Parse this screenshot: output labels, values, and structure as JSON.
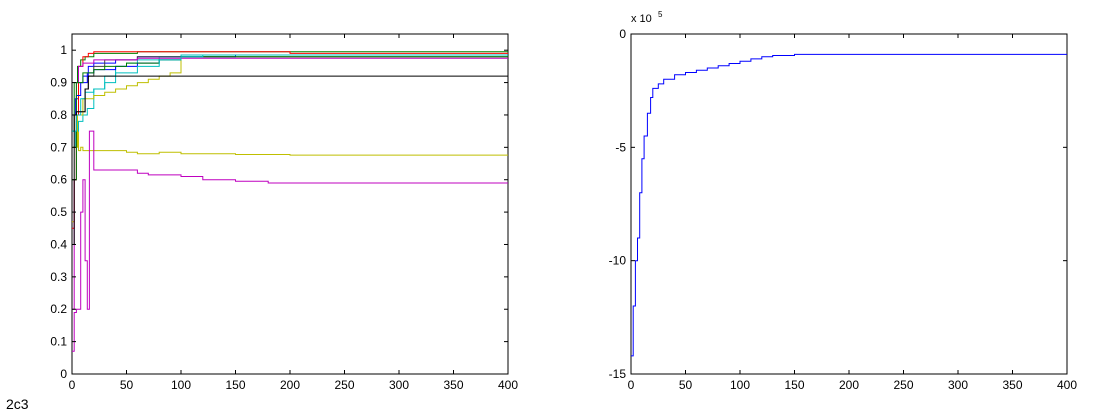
{
  "figure_label": "2c3",
  "chart_data": [
    {
      "type": "line",
      "title": "",
      "xlabel": "",
      "ylabel": "",
      "xlim": [
        0,
        400
      ],
      "ylim": [
        0,
        1.05
      ],
      "xticks": [
        0,
        50,
        100,
        150,
        200,
        250,
        300,
        350,
        400
      ],
      "yticks": [
        0,
        0.1,
        0.2,
        0.3,
        0.4,
        0.5,
        0.6,
        0.7,
        0.8,
        0.9,
        1
      ],
      "ytick_labels": [
        "0",
        "0.1",
        "0.2",
        "0.3",
        "0.4",
        "0.5",
        "0.6",
        "0.7",
        "0.8",
        "0.9",
        "1"
      ],
      "grid": false,
      "legend": "none",
      "series": [
        {
          "color": "#bfbf00",
          "x": [
            0,
            2,
            4,
            6,
            8,
            10,
            12,
            20,
            30,
            50,
            60,
            70,
            80,
            100,
            150,
            200,
            250,
            300,
            400
          ],
          "y": [
            0.47,
            0.6,
            0.78,
            0.69,
            0.7,
            0.69,
            0.69,
            0.69,
            0.69,
            0.685,
            0.68,
            0.68,
            0.685,
            0.68,
            0.678,
            0.676,
            0.676,
            0.676,
            0.676
          ]
        },
        {
          "color": "#bf00bf",
          "x": [
            0,
            2,
            4,
            6,
            8,
            10,
            12,
            14,
            16,
            20,
            25,
            40,
            60,
            70,
            100,
            120,
            130,
            150,
            180,
            200,
            300,
            400
          ],
          "y": [
            0.07,
            0.19,
            0.2,
            0.2,
            0.5,
            0.6,
            0.35,
            0.2,
            0.75,
            0.63,
            0.63,
            0.63,
            0.62,
            0.615,
            0.61,
            0.6,
            0.6,
            0.595,
            0.59,
            0.59,
            0.59,
            0.59
          ]
        },
        {
          "color": "#0000ff",
          "x": [
            0,
            3,
            6,
            10,
            15,
            20,
            40,
            60,
            80,
            100,
            150,
            200,
            400
          ],
          "y": [
            0.8,
            0.85,
            0.9,
            0.92,
            0.95,
            0.96,
            0.97,
            0.98,
            0.98,
            0.985,
            0.985,
            0.985,
            0.985
          ]
        },
        {
          "color": "#008000",
          "x": [
            0,
            2,
            5,
            8,
            12,
            20,
            40,
            60,
            80,
            100,
            200,
            400
          ],
          "y": [
            0.75,
            0.9,
            0.95,
            0.97,
            0.98,
            0.99,
            0.99,
            0.995,
            0.995,
            0.995,
            0.995,
            0.995
          ]
        },
        {
          "color": "#ff0000",
          "x": [
            0,
            2,
            4,
            6,
            10,
            15,
            20,
            40,
            60,
            100,
            200,
            400
          ],
          "y": [
            0.45,
            0.6,
            0.8,
            0.95,
            0.98,
            0.99,
            0.995,
            0.995,
            0.995,
            0.995,
            0.99,
            0.99
          ]
        },
        {
          "color": "#00bfbf",
          "x": [
            0,
            3,
            6,
            10,
            14,
            20,
            30,
            40,
            50,
            60,
            80,
            100,
            150,
            400
          ],
          "y": [
            0.7,
            0.75,
            0.78,
            0.8,
            0.82,
            0.88,
            0.92,
            0.95,
            0.96,
            0.97,
            0.98,
            0.985,
            0.985,
            0.985
          ]
        },
        {
          "color": "#404040",
          "x": [
            0,
            2,
            4,
            8,
            12,
            15,
            20,
            30,
            60,
            100,
            200,
            400
          ],
          "y": [
            0.75,
            0.8,
            0.81,
            0.81,
            0.88,
            0.92,
            0.95,
            0.97,
            0.98,
            0.98,
            0.98,
            0.98
          ]
        },
        {
          "color": "#bfbf00",
          "x": [
            0,
            5,
            10,
            20,
            30,
            40,
            50,
            60,
            70,
            80,
            90,
            100,
            150,
            400
          ],
          "y": [
            0.7,
            0.8,
            0.85,
            0.86,
            0.87,
            0.88,
            0.89,
            0.9,
            0.91,
            0.92,
            0.93,
            0.98,
            0.985,
            0.985
          ]
        },
        {
          "color": "#bf00bf",
          "x": [
            0,
            2,
            4,
            6,
            10,
            20,
            40,
            60,
            100,
            150,
            200,
            400
          ],
          "y": [
            0.2,
            0.6,
            0.9,
            0.95,
            0.96,
            0.97,
            0.97,
            0.975,
            0.975,
            0.975,
            0.975,
            0.975
          ]
        },
        {
          "color": "#0000ff",
          "x": [
            0,
            4,
            8,
            14,
            20,
            40,
            60,
            80,
            100,
            150,
            400
          ],
          "y": [
            0.8,
            0.86,
            0.9,
            0.93,
            0.94,
            0.95,
            0.96,
            0.97,
            0.98,
            0.985,
            0.985
          ]
        },
        {
          "color": "#008000",
          "x": [
            0,
            4,
            10,
            20,
            30,
            50,
            80,
            100,
            400
          ],
          "y": [
            0.6,
            0.9,
            0.93,
            0.94,
            0.95,
            0.96,
            0.97,
            0.98,
            0.98
          ]
        },
        {
          "color": "#00bfbf",
          "x": [
            0,
            4,
            8,
            12,
            20,
            30,
            40,
            60,
            80,
            100,
            120,
            400
          ],
          "y": [
            0.75,
            0.8,
            0.85,
            0.87,
            0.88,
            0.9,
            0.93,
            0.95,
            0.97,
            0.98,
            0.985,
            0.985
          ]
        },
        {
          "color": "#000000",
          "x": [
            0,
            2,
            4,
            6,
            8,
            10,
            12,
            14,
            15,
            20,
            400
          ],
          "y": [
            0.4,
            0.8,
            0.81,
            0.81,
            0.81,
            0.81,
            0.88,
            0.88,
            0.92,
            0.92,
            0.92
          ]
        }
      ]
    },
    {
      "type": "line",
      "title": "",
      "xlabel": "",
      "ylabel": "",
      "exponent_label": "x 10",
      "exponent_power": "5",
      "xlim": [
        0,
        400
      ],
      "ylim": [
        -15,
        0
      ],
      "xticks": [
        0,
        50,
        100,
        150,
        200,
        250,
        300,
        350,
        400
      ],
      "yticks": [
        -15,
        -10,
        -5,
        0
      ],
      "ytick_labels": [
        "-15",
        "-10",
        "-5",
        "0"
      ],
      "grid": false,
      "legend": "none",
      "series": [
        {
          "color": "#0000ff",
          "x": [
            0,
            2,
            4,
            6,
            8,
            10,
            12,
            15,
            18,
            20,
            25,
            30,
            40,
            50,
            60,
            70,
            80,
            90,
            100,
            110,
            120,
            130,
            150,
            200,
            300,
            400
          ],
          "y": [
            -14.2,
            -12.0,
            -10.0,
            -9.0,
            -7.0,
            -5.5,
            -4.5,
            -3.5,
            -2.8,
            -2.4,
            -2.2,
            -2.0,
            -1.8,
            -1.7,
            -1.6,
            -1.5,
            -1.4,
            -1.3,
            -1.2,
            -1.1,
            -1.0,
            -0.95,
            -0.9,
            -0.9,
            -0.9,
            -0.9
          ]
        }
      ]
    }
  ]
}
